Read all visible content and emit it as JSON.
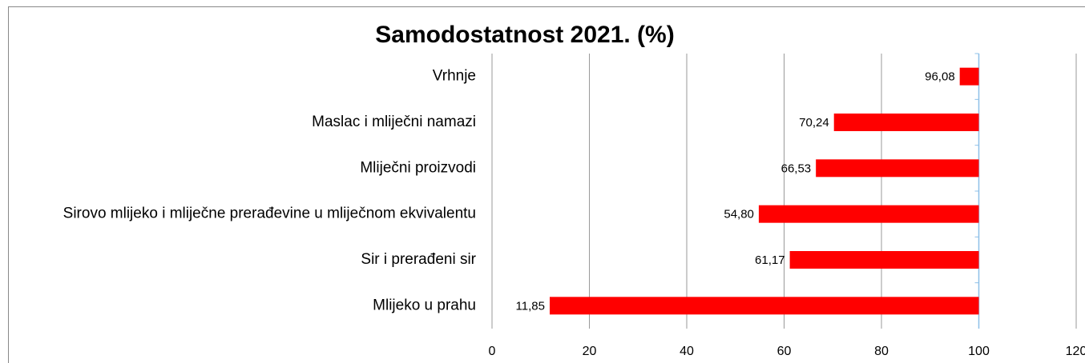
{
  "chart_data": {
    "type": "hbar",
    "title": "Samodostatnost 2021. (%)",
    "categories": [
      "Vrhnje",
      "Maslac i mliječni namazi",
      "Mliječni proizvodi",
      "Sirovo mlijeko i mliječne prerađevine u mliječnom ekvivalentu",
      "Sir i prerađeni sir",
      "Mlijeko u prahu"
    ],
    "values": [
      96.08,
      70.24,
      66.53,
      54.8,
      61.17,
      11.85
    ],
    "value_labels": [
      "96,08",
      "70,24",
      "66,53",
      "54,80",
      "61,17",
      "11,85"
    ],
    "color": "#ff0000",
    "bar_base": 100,
    "xlim": [
      0,
      120
    ],
    "xticks": [
      0,
      20,
      40,
      60,
      80,
      100,
      120
    ],
    "grid": true
  }
}
